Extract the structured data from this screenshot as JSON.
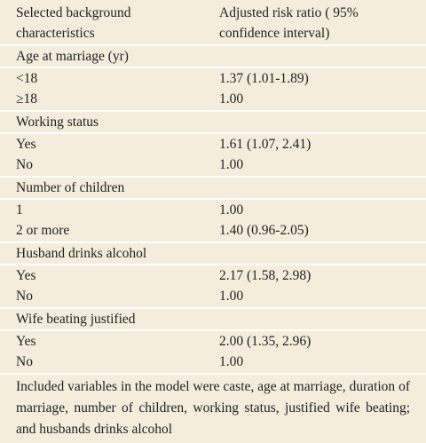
{
  "header": {
    "columns": [
      "Selected background characteristics",
      "Adjusted risk ratio ( 95% confidence interval)"
    ]
  },
  "sections": [
    {
      "title": "Age at marriage (yr)",
      "rows": [
        [
          "<18",
          "1.37 (1.01-1.89)"
        ],
        [
          "≥18",
          "1.00"
        ]
      ]
    },
    {
      "title": "Working status",
      "rows": [
        [
          "Yes",
          "1.61 (1.07, 2.41)"
        ],
        [
          "No",
          "1.00"
        ]
      ]
    },
    {
      "title": "Number of children",
      "rows": [
        [
          "1",
          "1.00"
        ],
        [
          "2 or more",
          "1.40 (0.96-2.05)"
        ]
      ]
    },
    {
      "title": "Husband drinks alcohol",
      "rows": [
        [
          "Yes",
          "2.17 (1.58, 2.98)"
        ],
        [
          "No",
          "1.00"
        ]
      ]
    },
    {
      "title": "Wife beating justified",
      "rows": [
        [
          "Yes",
          "2.00 (1.35, 2.96)"
        ],
        [
          "No",
          "1.00"
        ]
      ]
    }
  ],
  "footnote": "Included variables in the model were caste, age at marriage, duration of marriage, number of children, working status, justified wife beating; and husbands drinks alcohol"
}
